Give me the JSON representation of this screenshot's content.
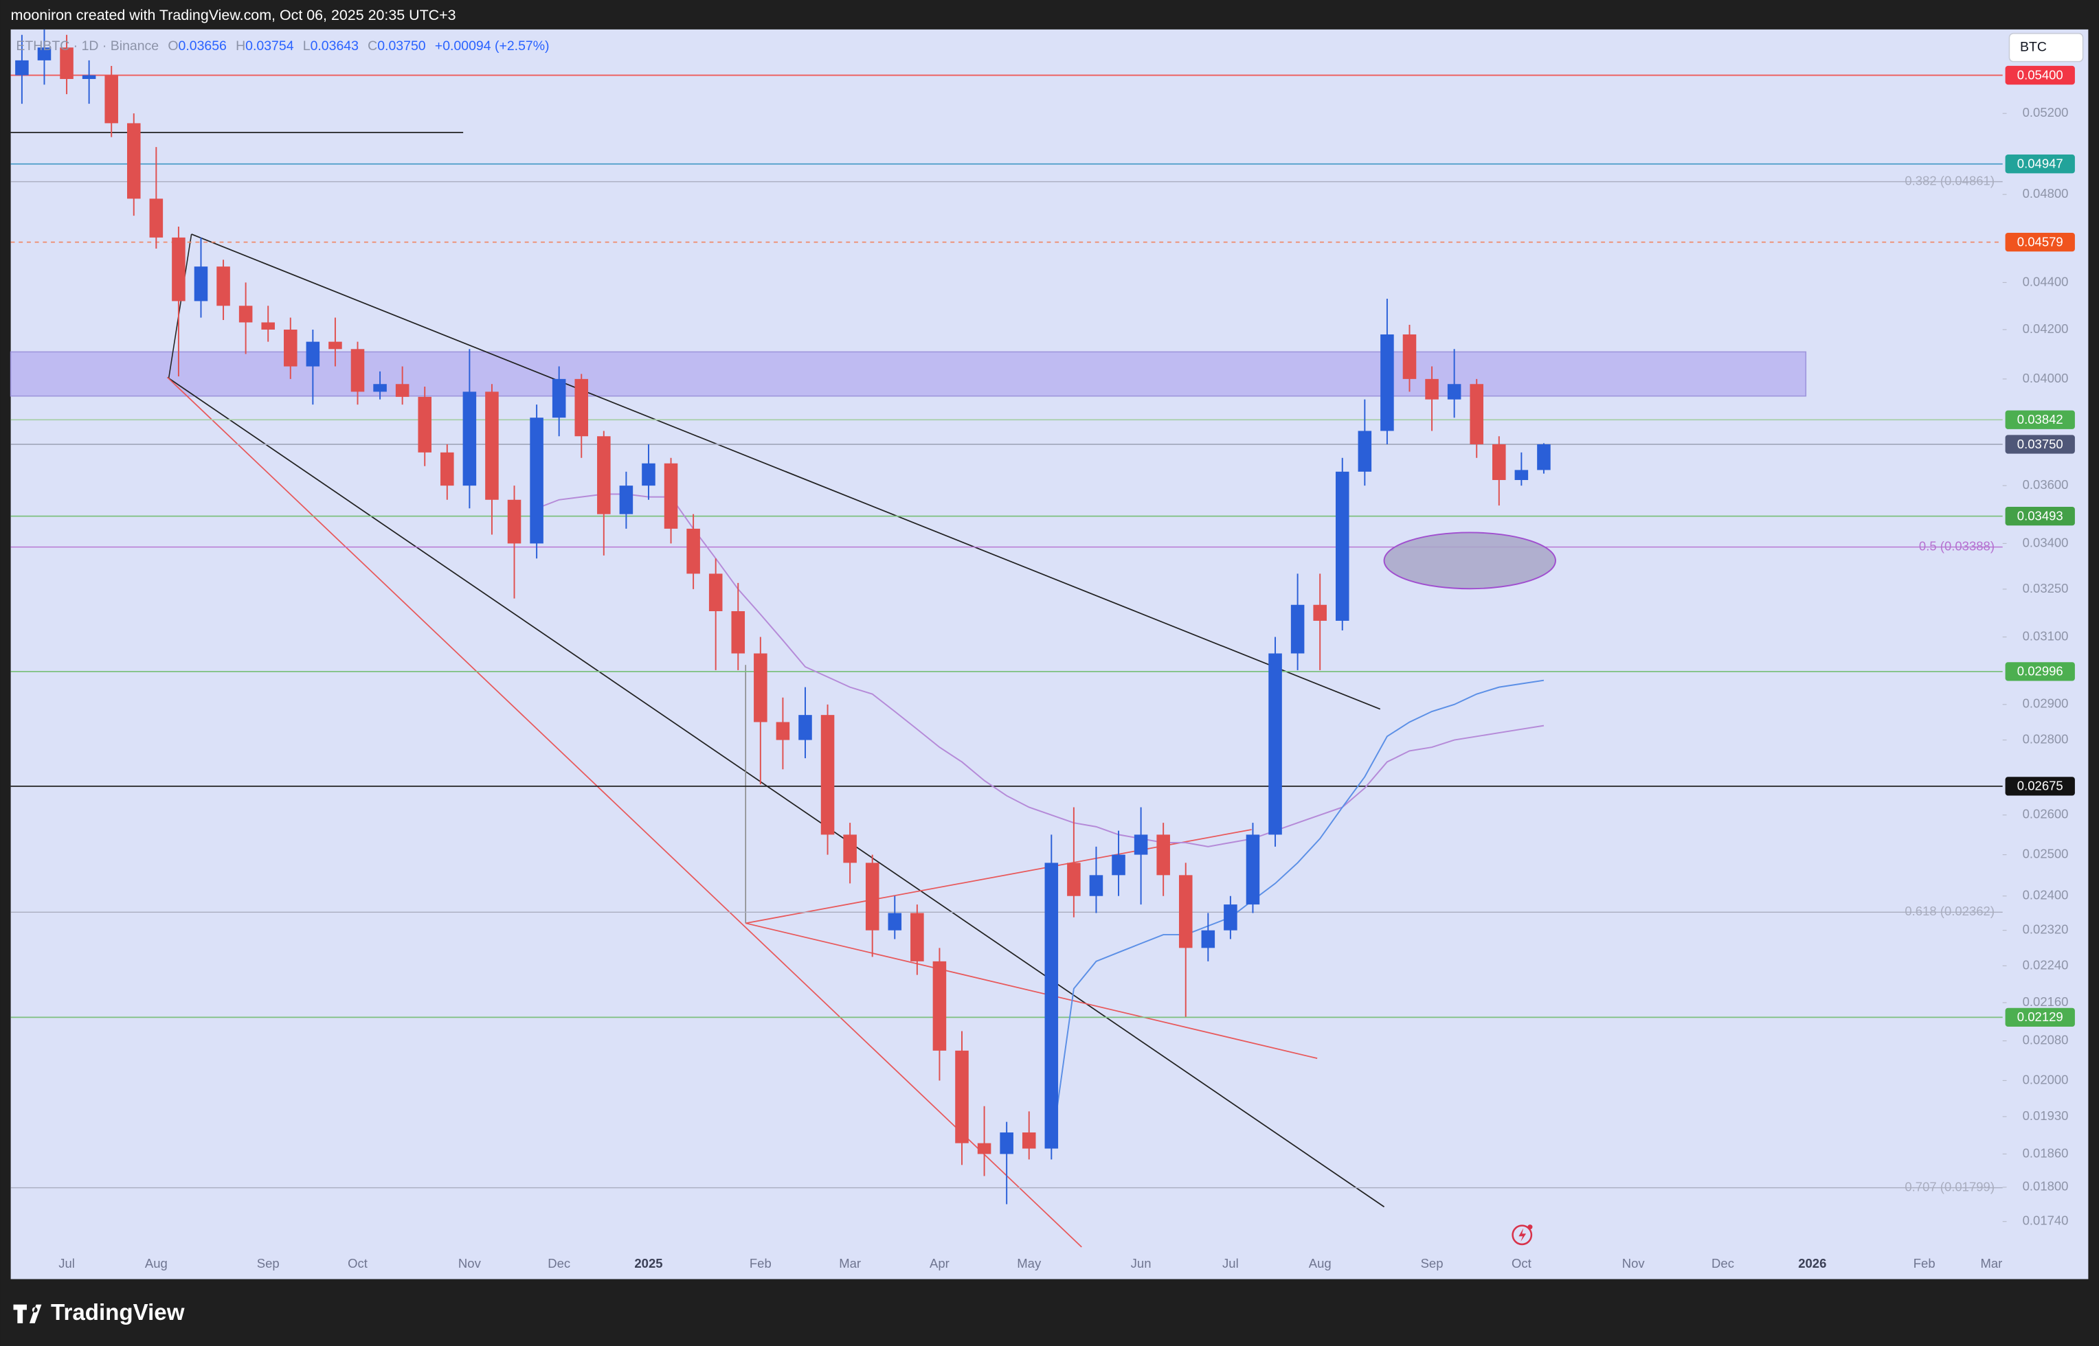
{
  "header": "mooniron created with TradingView.com, Oct 06, 2025 20:35 UTC+3",
  "footer_logo": "TradingView",
  "currency_box": "BTC",
  "chart_data": {
    "type": "candlestick",
    "log_scale": true,
    "grid": false,
    "legend": {
      "symbol": "ETHBTC · 1D · Binance",
      "items": [
        {
          "key": "O",
          "value": "0.03656"
        },
        {
          "key": "H",
          "value": "0.03754"
        },
        {
          "key": "L",
          "value": "0.03643"
        },
        {
          "key": "C",
          "value": "0.03750"
        }
      ],
      "change": "+0.00094 (+2.57%)"
    },
    "categories": [
      null,
      null,
      "Jul",
      null,
      null,
      null,
      "Aug",
      null,
      null,
      null,
      null,
      "Sep",
      null,
      null,
      null,
      "Oct",
      null,
      null,
      null,
      null,
      "Nov",
      null,
      null,
      null,
      "Dec",
      null,
      null,
      null,
      "2025",
      null,
      null,
      null,
      null,
      "Feb",
      null,
      null,
      null,
      "Mar",
      null,
      null,
      null,
      "Apr",
      null,
      null,
      null,
      "May",
      null,
      null,
      null,
      null,
      "Jun",
      null,
      null,
      null,
      "Jul",
      null,
      null,
      null,
      "Aug",
      null,
      null,
      null,
      null,
      "Sep",
      null,
      null,
      null,
      "Oct",
      null,
      null,
      null,
      null,
      "Nov",
      null,
      null,
      null,
      "Dec",
      null,
      null,
      null,
      "2026",
      null,
      null,
      null,
      null,
      "Feb",
      null,
      null,
      "Mar"
    ],
    "up_color": "#2a5fd8",
    "down_color": "#e0504f",
    "open": [
      0.054,
      0.0548,
      0.0555,
      0.0538,
      0.054,
      0.0515,
      0.0478,
      0.046,
      0.0432,
      0.0447,
      0.043,
      0.0423,
      0.042,
      0.0405,
      0.0415,
      0.0412,
      0.0395,
      0.0398,
      0.0393,
      0.0372,
      0.036,
      0.0395,
      0.0355,
      0.034,
      0.0385,
      0.04,
      0.0378,
      0.035,
      0.036,
      0.0368,
      0.0345,
      0.033,
      0.0318,
      0.0305,
      0.0285,
      0.028,
      0.0287,
      0.0255,
      0.0248,
      0.0232,
      0.0236,
      0.0225,
      0.0206,
      0.0188,
      0.0186,
      0.019,
      0.0187,
      0.0248,
      0.024,
      0.0245,
      0.025,
      0.0255,
      0.0245,
      0.0228,
      0.0232,
      0.0238,
      0.0255,
      0.0305,
      0.032,
      0.0315,
      0.0365,
      0.038,
      0.0418,
      0.04,
      0.0392,
      0.0398,
      0.0375,
      0.0362,
      0.03656,
      null,
      null,
      null,
      null,
      null,
      null,
      null,
      null,
      null,
      null,
      null,
      null,
      null,
      null,
      null,
      null,
      null,
      null,
      null,
      null
    ],
    "high": [
      0.0562,
      0.0565,
      0.0562,
      0.0548,
      0.0545,
      0.052,
      0.0503,
      0.0465,
      0.046,
      0.045,
      0.044,
      0.043,
      0.0425,
      0.042,
      0.0425,
      0.0415,
      0.0403,
      0.0405,
      0.0397,
      0.0375,
      0.0412,
      0.0398,
      0.036,
      0.039,
      0.0405,
      0.0402,
      0.038,
      0.0365,
      0.0375,
      0.037,
      0.035,
      0.0335,
      0.0327,
      0.031,
      0.0292,
      0.0295,
      0.029,
      0.0258,
      0.025,
      0.024,
      0.0238,
      0.0228,
      0.021,
      0.0195,
      0.0192,
      0.0194,
      0.0255,
      0.0262,
      0.0252,
      0.0256,
      0.0262,
      0.0258,
      0.0248,
      0.0236,
      0.024,
      0.0258,
      0.031,
      0.033,
      0.033,
      0.037,
      0.0392,
      0.0433,
      0.0422,
      0.0405,
      0.0412,
      0.04,
      0.0378,
      0.0372,
      0.03754,
      null,
      null,
      null,
      null,
      null,
      null,
      null,
      null,
      null,
      null,
      null,
      null,
      null,
      null,
      null,
      null,
      null,
      null,
      null,
      null
    ],
    "low": [
      0.0525,
      0.0535,
      0.053,
      0.0525,
      0.0508,
      0.047,
      0.0455,
      0.0401,
      0.0425,
      0.0424,
      0.041,
      0.0415,
      0.04,
      0.039,
      0.0405,
      0.039,
      0.0392,
      0.039,
      0.0367,
      0.0355,
      0.0352,
      0.0343,
      0.0322,
      0.0335,
      0.0378,
      0.037,
      0.0336,
      0.0345,
      0.0355,
      0.034,
      0.0325,
      0.03,
      0.03,
      0.0268,
      0.0272,
      0.0275,
      0.025,
      0.0243,
      0.0226,
      0.023,
      0.0222,
      0.02,
      0.0184,
      0.0182,
      0.0177,
      0.0185,
      0.0185,
      0.0235,
      0.0236,
      0.024,
      0.0238,
      0.024,
      0.0213,
      0.0225,
      0.023,
      0.0236,
      0.0252,
      0.03,
      0.03,
      0.0312,
      0.036,
      0.0375,
      0.0395,
      0.038,
      0.0385,
      0.037,
      0.0353,
      0.036,
      0.03643,
      null,
      null,
      null,
      null,
      null,
      null,
      null,
      null,
      null,
      null,
      null,
      null,
      null,
      null,
      null,
      null,
      null,
      null,
      null,
      null
    ],
    "close": [
      0.0548,
      0.0555,
      0.0538,
      0.054,
      0.0515,
      0.0478,
      0.046,
      0.0432,
      0.0447,
      0.043,
      0.0423,
      0.042,
      0.0405,
      0.0415,
      0.0412,
      0.0395,
      0.0398,
      0.0393,
      0.0372,
      0.036,
      0.0395,
      0.0355,
      0.034,
      0.0385,
      0.04,
      0.0378,
      0.035,
      0.036,
      0.0368,
      0.0345,
      0.033,
      0.0318,
      0.0305,
      0.0285,
      0.028,
      0.0287,
      0.0255,
      0.0248,
      0.0232,
      0.0236,
      0.0225,
      0.0206,
      0.0188,
      0.0186,
      0.019,
      0.0187,
      0.0248,
      0.024,
      0.0245,
      0.025,
      0.0255,
      0.0245,
      0.0228,
      0.0232,
      0.0238,
      0.0255,
      0.0305,
      0.032,
      0.0315,
      0.0365,
      0.038,
      0.0418,
      0.04,
      0.0392,
      0.0398,
      0.0375,
      0.0362,
      0.03656,
      0.0375,
      null,
      null,
      null,
      null,
      null,
      null,
      null,
      null,
      null,
      null,
      null,
      null,
      null,
      null,
      null,
      null,
      null,
      null,
      null,
      null
    ],
    "lines": [
      {
        "color": "#b58ad8",
        "values": [
          null,
          null,
          null,
          null,
          null,
          null,
          null,
          null,
          null,
          null,
          null,
          null,
          null,
          null,
          null,
          null,
          null,
          null,
          null,
          null,
          null,
          null,
          null,
          0.0352,
          0.0355,
          0.0356,
          0.0357,
          0.0357,
          0.0356,
          0.0356,
          0.0345,
          0.0335,
          0.0325,
          0.0317,
          0.0309,
          0.0301,
          0.0298,
          0.0295,
          0.0293,
          0.0288,
          0.0283,
          0.0278,
          0.0274,
          0.0269,
          0.0265,
          0.0262,
          0.026,
          0.0258,
          0.0257,
          0.0255,
          0.0254,
          0.0253,
          0.0253,
          0.0252,
          0.0253,
          0.0254,
          0.0256,
          0.0258,
          0.026,
          0.0262,
          0.0267,
          0.0274,
          0.0277,
          0.0278,
          0.028,
          0.0281,
          0.0282,
          0.0283,
          0.0284,
          null,
          null,
          null,
          null,
          null,
          null,
          null,
          null,
          null,
          null,
          null,
          null,
          null,
          null,
          null,
          null,
          null,
          null,
          null,
          null
        ]
      },
      {
        "color": "#5b8fe6",
        "values": [
          null,
          null,
          null,
          null,
          null,
          null,
          null,
          null,
          null,
          null,
          null,
          null,
          null,
          null,
          null,
          null,
          null,
          null,
          null,
          null,
          null,
          null,
          null,
          null,
          null,
          null,
          null,
          null,
          null,
          null,
          null,
          null,
          null,
          null,
          null,
          null,
          null,
          null,
          null,
          null,
          null,
          null,
          null,
          null,
          null,
          null,
          0.0187,
          0.0219,
          0.0225,
          0.0227,
          0.0229,
          0.0231,
          0.0231,
          0.0233,
          0.0235,
          0.0239,
          0.0243,
          0.0248,
          0.0254,
          0.0262,
          0.027,
          0.0281,
          0.0285,
          0.0288,
          0.029,
          0.0293,
          0.0295,
          0.0296,
          0.0297,
          null,
          null,
          null,
          null,
          null,
          null,
          null,
          null,
          null,
          null,
          null,
          null,
          null,
          null,
          null,
          null,
          null,
          null,
          null,
          null
        ]
      }
    ],
    "ylim": [
      0.0169,
      0.0565
    ],
    "yticks": [
      {
        "value": 0.052,
        "label": "0.05200"
      },
      {
        "value": 0.048,
        "label": "0.04800"
      },
      {
        "value": 0.044,
        "label": "0.04400"
      },
      {
        "value": 0.042,
        "label": "0.04200"
      },
      {
        "value": 0.04,
        "label": "0.04000"
      },
      {
        "value": 0.036,
        "label": "0.03600"
      },
      {
        "value": 0.034,
        "label": "0.03400"
      },
      {
        "value": 0.0325,
        "label": "0.03250"
      },
      {
        "value": 0.031,
        "label": "0.03100"
      },
      {
        "value": 0.029,
        "label": "0.02900"
      },
      {
        "value": 0.028,
        "label": "0.02800"
      },
      {
        "value": 0.026,
        "label": "0.02600"
      },
      {
        "value": 0.025,
        "label": "0.02500"
      },
      {
        "value": 0.024,
        "label": "0.02400"
      },
      {
        "value": 0.0232,
        "label": "0.02320"
      },
      {
        "value": 0.0224,
        "label": "0.02240"
      },
      {
        "value": 0.0216,
        "label": "0.02160"
      },
      {
        "value": 0.0208,
        "label": "0.02080"
      },
      {
        "value": 0.02,
        "label": "0.02000"
      },
      {
        "value": 0.0193,
        "label": "0.01930"
      },
      {
        "value": 0.0186,
        "label": "0.01860"
      },
      {
        "value": 0.018,
        "label": "0.01800"
      },
      {
        "value": 0.0174,
        "label": "0.01740"
      }
    ],
    "levels": [
      {
        "value": 0.054,
        "label": "0.05400",
        "color": "#f23645",
        "line_color": "#ef5a5a",
        "line_style": "solid"
      },
      {
        "value": 0.04947,
        "label": "0.04947",
        "color": "#22a39a",
        "line_color": "#4a9cc8",
        "line_style": "solid"
      },
      {
        "value": 0.04579,
        "label": "0.04579",
        "color": "#f0541e",
        "line_color": "#f08a6a",
        "line_style": "dashed"
      },
      {
        "value": 0.03842,
        "label": "0.03842",
        "color": "#4caf50",
        "line_color": "#a8cfa8",
        "line_style": "solid"
      },
      {
        "value": 0.0375,
        "label": "0.03750",
        "color": "#4f5778",
        "line_color": "#a3a8bd",
        "line_style": "solid"
      },
      {
        "value": 0.03493,
        "label": "0.03493",
        "color": "#43a047",
        "line_color": "#7cc07e",
        "line_style": "solid"
      },
      {
        "value": 0.02996,
        "label": "0.02996",
        "color": "#4caf50",
        "line_color": "#7cc07e",
        "line_style": "solid"
      },
      {
        "value": 0.02675,
        "label": "0.02675",
        "color": "#131313",
        "line_color": "#222222",
        "line_style": "solid"
      },
      {
        "value": 0.02129,
        "label": "0.02129",
        "color": "#4caf50",
        "line_color": "#7cc07e",
        "line_style": "solid"
      }
    ],
    "fib_levels": [
      {
        "value": 0.04861,
        "label": "0.382 (0.04861)",
        "color": "#a9adbf"
      },
      {
        "value": 0.03388,
        "label": "0.5 (0.03388)",
        "color": "#b571d0"
      },
      {
        "value": 0.02362,
        "label": "0.618 (0.02362)",
        "color": "#a9adbf"
      },
      {
        "value": 0.01799,
        "label": "0.707 (0.01799)",
        "color": "#a9adbf"
      }
    ]
  }
}
